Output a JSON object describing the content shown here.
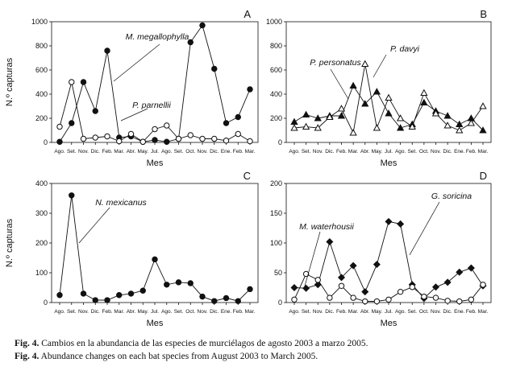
{
  "figure": {
    "months": [
      "Ago.",
      "Set.",
      "Nov.",
      "Dic.",
      "Feb.",
      "Mar.",
      "Abr.",
      "May.",
      "Jul.",
      "Ago.",
      "Set.",
      "Oct.",
      "Nov.",
      "Dic.",
      "Ene.",
      "Feb.",
      "Mar."
    ]
  },
  "chart_data": [
    {
      "panel": "A",
      "type": "line",
      "xlabel": "Mes",
      "ylabel": "N.º capturas",
      "ylim": [
        0,
        1000
      ],
      "yticks": [
        0,
        200,
        400,
        600,
        800,
        1000
      ],
      "categories": [
        "Ago.",
        "Set.",
        "Nov.",
        "Dic.",
        "Feb.",
        "Mar.",
        "Abr.",
        "May.",
        "Jul.",
        "Ago.",
        "Set.",
        "Oct.",
        "Nov.",
        "Dic.",
        "Ene.",
        "Feb.",
        "Mar."
      ],
      "series": [
        {
          "name": "M. megallophylla",
          "marker": "filled-circle",
          "values": [
            5,
            160,
            500,
            260,
            760,
            40,
            50,
            5,
            20,
            5,
            30,
            830,
            970,
            610,
            160,
            210,
            440
          ]
        },
        {
          "name": "P. parnellii",
          "marker": "open-circle",
          "values": [
            130,
            500,
            30,
            40,
            50,
            10,
            70,
            5,
            110,
            140,
            30,
            60,
            30,
            30,
            15,
            70,
            10
          ]
        }
      ]
    },
    {
      "panel": "B",
      "type": "line",
      "xlabel": "Mes",
      "ylabel": "",
      "ylim": [
        0,
        1000
      ],
      "yticks": [
        0,
        200,
        400,
        600,
        800,
        1000
      ],
      "categories": [
        "Ago.",
        "Set.",
        "Nov.",
        "Dic.",
        "Feb.",
        "Mar.",
        "Abr.",
        "May.",
        "Jul.",
        "Ago.",
        "Set.",
        "Oct.",
        "Nov.",
        "Dic.",
        "Ene.",
        "Feb.",
        "Mar."
      ],
      "series": [
        {
          "name": "P. personatus",
          "marker": "filled-triangle",
          "values": [
            170,
            230,
            200,
            220,
            220,
            470,
            320,
            420,
            240,
            120,
            150,
            330,
            260,
            220,
            150,
            200,
            100
          ]
        },
        {
          "name": "P. davyi",
          "marker": "open-triangle",
          "values": [
            120,
            130,
            120,
            210,
            280,
            80,
            650,
            120,
            370,
            200,
            130,
            410,
            240,
            140,
            100,
            160,
            300
          ]
        }
      ]
    },
    {
      "panel": "C",
      "type": "line",
      "xlabel": "Mes",
      "ylabel": "N.º capturas",
      "ylim": [
        0,
        400
      ],
      "yticks": [
        0,
        100,
        200,
        300,
        400
      ],
      "categories": [
        "Ago.",
        "Set.",
        "Nov.",
        "Dic.",
        "Feb.",
        "Mar.",
        "Abr.",
        "May.",
        "Jul.",
        "Ago.",
        "Set.",
        "Oct.",
        "Nov.",
        "Dic.",
        "Ene.",
        "Feb.",
        "Mar."
      ],
      "series": [
        {
          "name": "N. mexicanus",
          "marker": "filled-circle",
          "values": [
            25,
            360,
            30,
            8,
            8,
            25,
            30,
            40,
            145,
            60,
            68,
            65,
            20,
            5,
            15,
            5,
            45
          ]
        }
      ]
    },
    {
      "panel": "D",
      "type": "line",
      "xlabel": "Mes",
      "ylabel": "",
      "ylim": [
        0,
        200
      ],
      "yticks": [
        0,
        50,
        100,
        150,
        200
      ],
      "categories": [
        "Ago.",
        "Set.",
        "Nov.",
        "Dic.",
        "Feb.",
        "Mar.",
        "Abr.",
        "May.",
        "Jul.",
        "Ago.",
        "Set.",
        "Oct.",
        "Nov.",
        "Dic.",
        "Ene.",
        "Feb.",
        "Mar."
      ],
      "series": [
        {
          "name": "G. soricina",
          "marker": "filled-diamond",
          "values": [
            25,
            24,
            30,
            102,
            42,
            62,
            18,
            64,
            136,
            132,
            30,
            7,
            26,
            34,
            51,
            58,
            28
          ]
        },
        {
          "name": "M. waterhousii",
          "marker": "open-circle",
          "values": [
            5,
            48,
            38,
            8,
            28,
            8,
            2,
            2,
            5,
            18,
            26,
            10,
            8,
            3,
            2,
            5,
            30
          ]
        }
      ]
    }
  ],
  "captions": {
    "line1_label": "Fig. 4.",
    "line1_text": " Cambios en la abundancia de las especies de murciélagos de agosto 2003 a marzo 2005.",
    "line2_label": "Fig. 4.",
    "line2_text": " Abundance changes on each bat species from August 2003 to March 2005."
  }
}
